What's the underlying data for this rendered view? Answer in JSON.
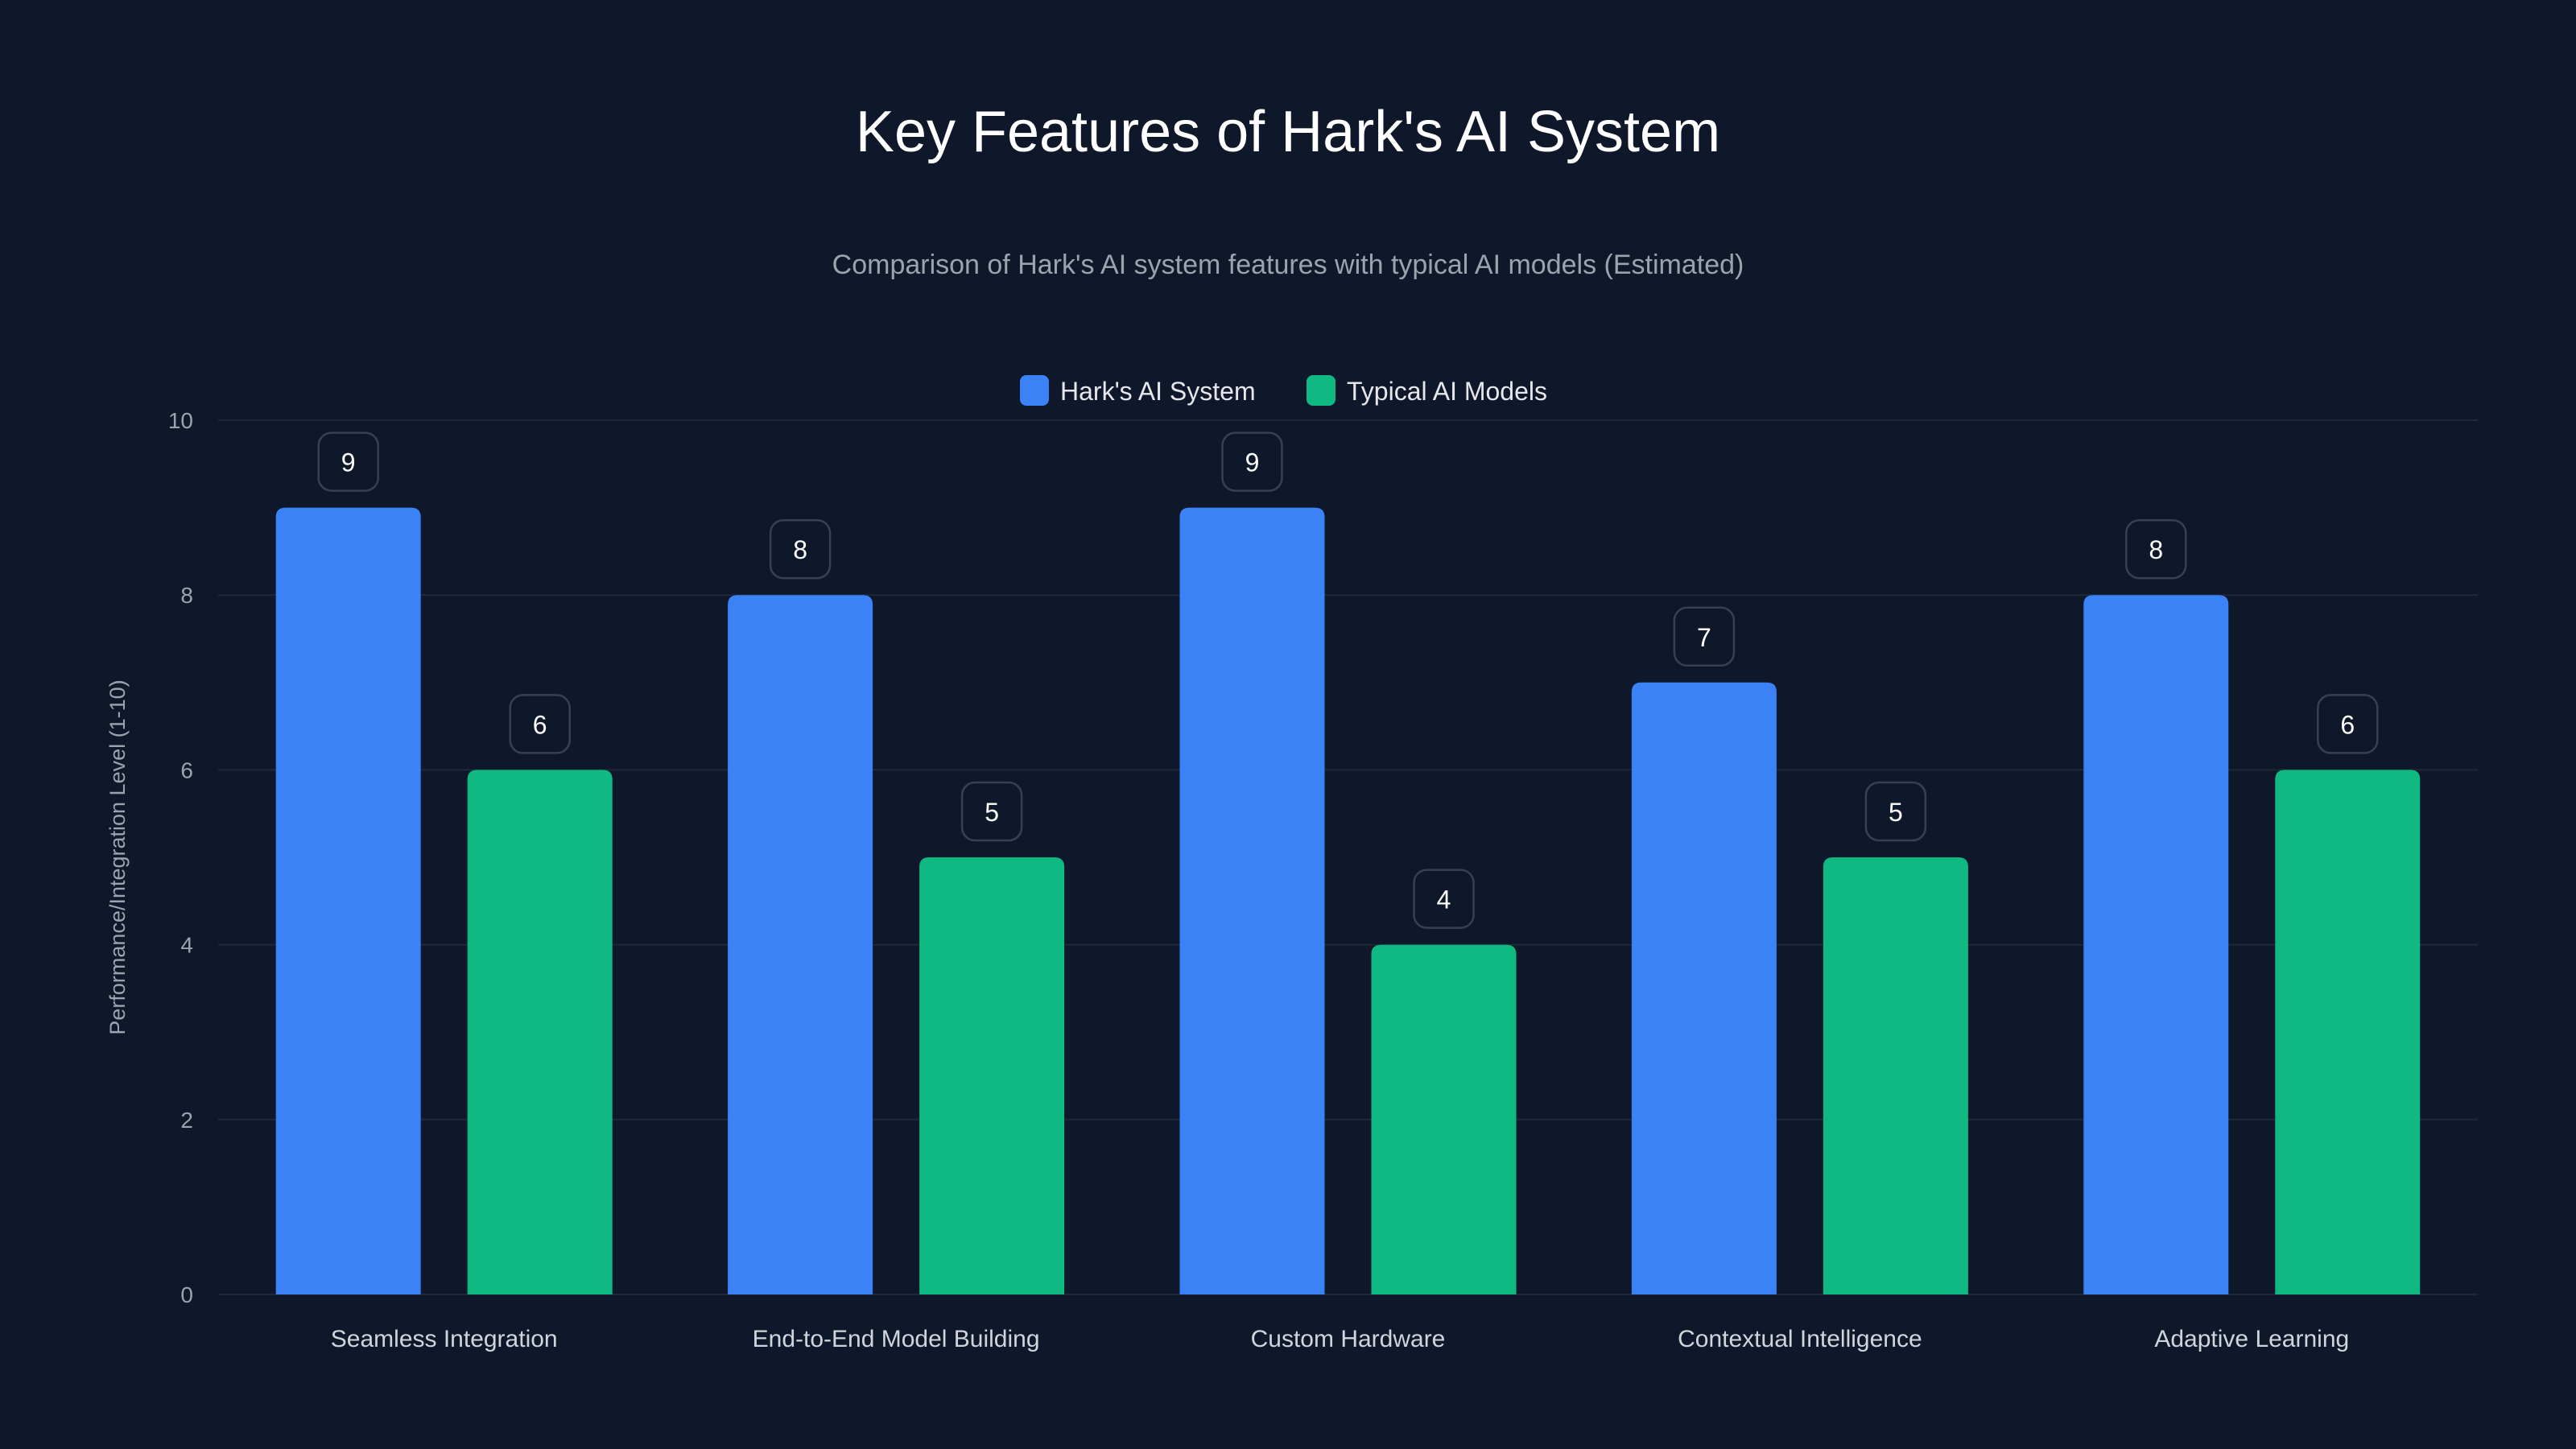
{
  "chart_data": {
    "type": "bar",
    "title": "Key Features of Hark's AI System",
    "subtitle": "Comparison of Hark's AI system features with typical AI models (Estimated)",
    "xlabel": "",
    "ylabel": "Performance/Integration Level (1-10)",
    "ylim": [
      0,
      10
    ],
    "yticks": [
      0,
      2,
      4,
      6,
      8,
      10
    ],
    "grid": true,
    "legend_position": "top-center",
    "categories": [
      "Seamless Integration",
      "End-to-End Model Building",
      "Custom Hardware",
      "Contextual Intelligence",
      "Adaptive Learning"
    ],
    "series": [
      {
        "name": "Hark's AI System",
        "color": "#3b82f6",
        "values": [
          9,
          8,
          9,
          7,
          8
        ]
      },
      {
        "name": "Typical AI Models",
        "color": "#10b981",
        "values": [
          6,
          5,
          4,
          5,
          6
        ]
      }
    ]
  },
  "colors": {
    "background": "#0f172a",
    "grid": "#1f2937",
    "label_border": "#374151"
  }
}
